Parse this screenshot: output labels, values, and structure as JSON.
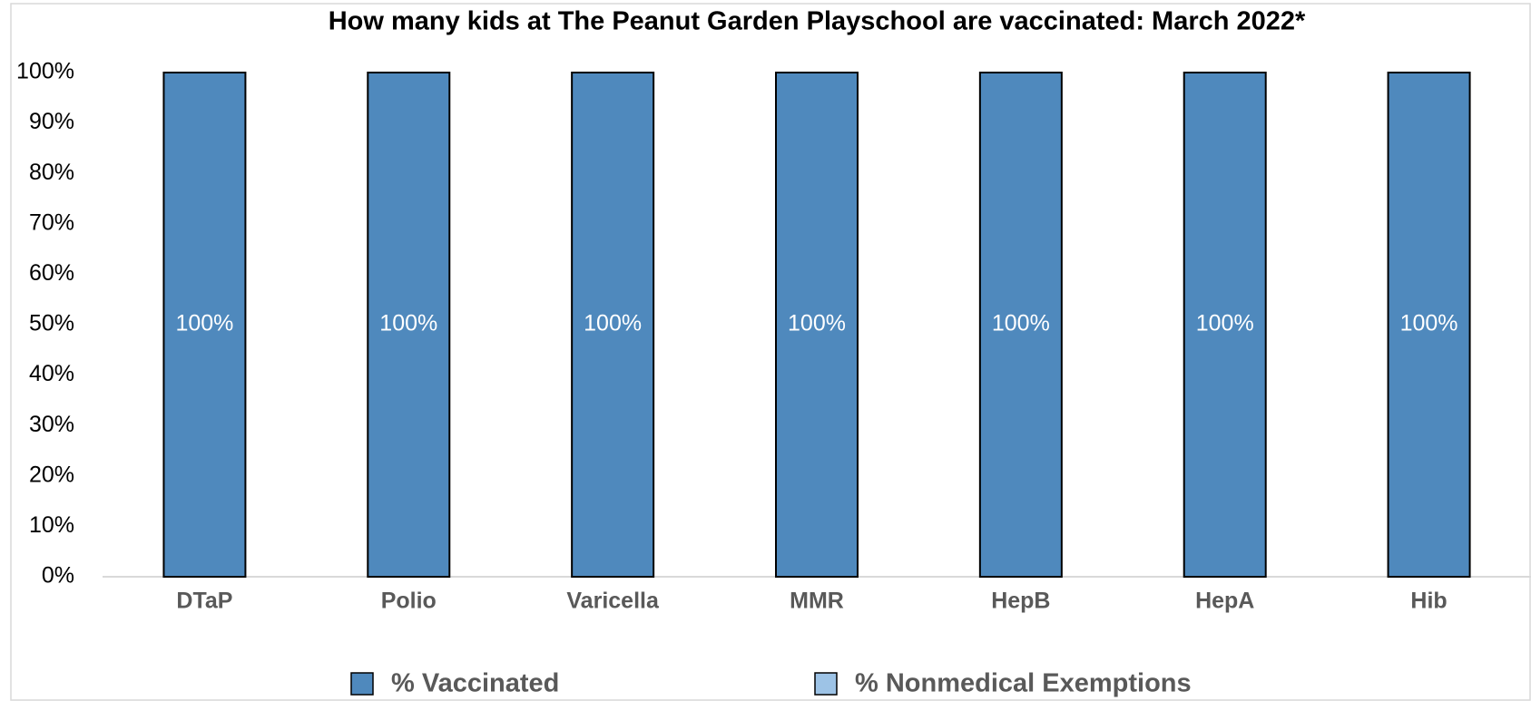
{
  "chart_data": {
    "type": "stacked_bar",
    "title": "How many kids at The Peanut Garden Playschool are vaccinated: March 2022*",
    "categories": [
      "DTaP",
      "Polio",
      "Varicella",
      "MMR",
      "HepB",
      "HepA",
      "Hib"
    ],
    "series": [
      {
        "name": "% Vaccinated",
        "color": "#4f89bd",
        "values": [
          100,
          100,
          100,
          100,
          100,
          100,
          100
        ],
        "value_labels": [
          "100%",
          "100%",
          "100%",
          "100%",
          "100%",
          "100%",
          "100%"
        ]
      },
      {
        "name": "% Nonmedical Exemptions",
        "color": "#9dc3e6",
        "values": [
          0,
          0,
          0,
          0,
          0,
          0,
          0
        ]
      }
    ],
    "ylim": [
      0,
      100
    ],
    "yticks": [
      {
        "value": 0,
        "label": "0%"
      },
      {
        "value": 10,
        "label": "10%"
      },
      {
        "value": 20,
        "label": "20%"
      },
      {
        "value": 30,
        "label": "30%"
      },
      {
        "value": 40,
        "label": "40%"
      },
      {
        "value": 50,
        "label": "50%"
      },
      {
        "value": 60,
        "label": "60%"
      },
      {
        "value": 70,
        "label": "70%"
      },
      {
        "value": 80,
        "label": "80%"
      },
      {
        "value": 90,
        "label": "90%"
      },
      {
        "value": 100,
        "label": "100%"
      }
    ],
    "grid": false,
    "legend": "bottom"
  }
}
